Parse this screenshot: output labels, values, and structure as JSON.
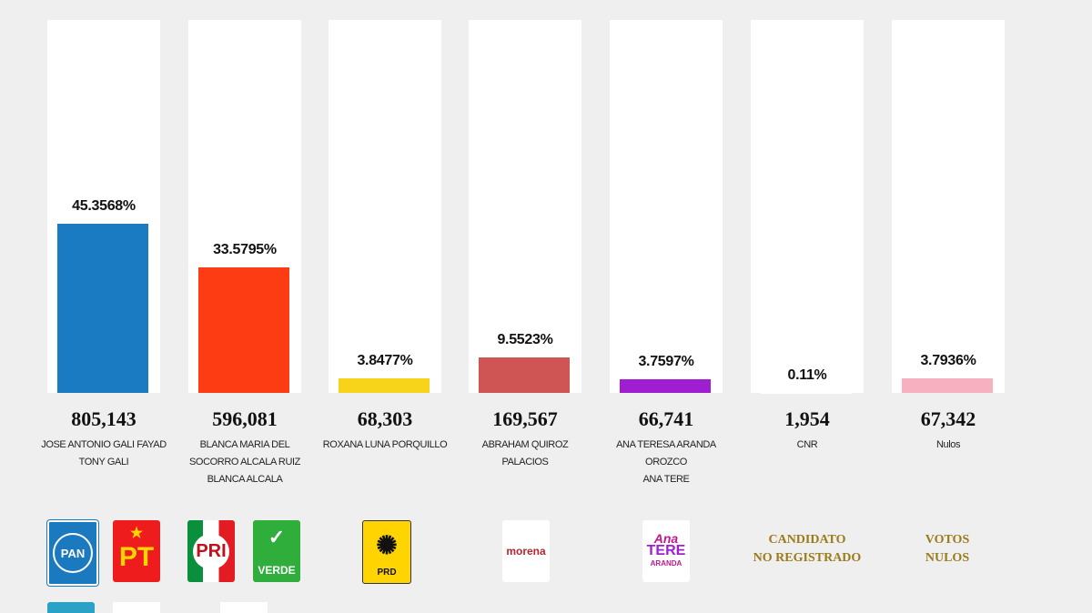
{
  "chart_data": {
    "type": "bar",
    "ylim": [
      0,
      100
    ],
    "bars": [
      {
        "pct": 45.3568,
        "pct_label": "45.3568%",
        "votes": "805,143",
        "name_lines": [
          "JOSE ANTONIO GALI FAYAD",
          "TONY GALI"
        ],
        "color": "#1a7ac2"
      },
      {
        "pct": 33.5795,
        "pct_label": "33.5795%",
        "votes": "596,081",
        "name_lines": [
          "BLANCA MARIA DEL",
          "SOCORRO ALCALA RUIZ",
          "BLANCA ALCALA"
        ],
        "color": "#fe3c14"
      },
      {
        "pct": 3.8477,
        "pct_label": "3.8477%",
        "votes": "68,303",
        "name_lines": [
          "ROXANA LUNA PORQUILLO"
        ],
        "color": "#f7d31a"
      },
      {
        "pct": 9.5523,
        "pct_label": "9.5523%",
        "votes": "169,567",
        "name_lines": [
          "ABRAHAM QUIROZ",
          "PALACIOS"
        ],
        "color": "#cf5555"
      },
      {
        "pct": 3.7597,
        "pct_label": "3.7597%",
        "votes": "66,741",
        "name_lines": [
          "ANA TERESA ARANDA",
          "OROZCO",
          "ANA TERE"
        ],
        "color": "#a01ed2"
      },
      {
        "pct": 0.11,
        "pct_label": "0.11%",
        "votes": "1,954",
        "name_lines": [
          "CNR"
        ],
        "color": "#ffffff"
      },
      {
        "pct": 3.7936,
        "pct_label": "3.7936%",
        "votes": "67,342",
        "name_lines": [
          "Nulos"
        ],
        "color": "#f7b0c0"
      }
    ]
  },
  "logos": {
    "pan": "PAN",
    "pt": "PT",
    "pri": "PRI",
    "verde": "VERDE",
    "prd": "PRD",
    "morena": "morena",
    "anatere": [
      "Ana",
      "TERE",
      "ARANDA"
    ],
    "cnr_lines": [
      "CANDIDATO",
      "NO REGISTRADO"
    ],
    "nulos_lines": [
      "VOTOS",
      "NULOS"
    ]
  }
}
